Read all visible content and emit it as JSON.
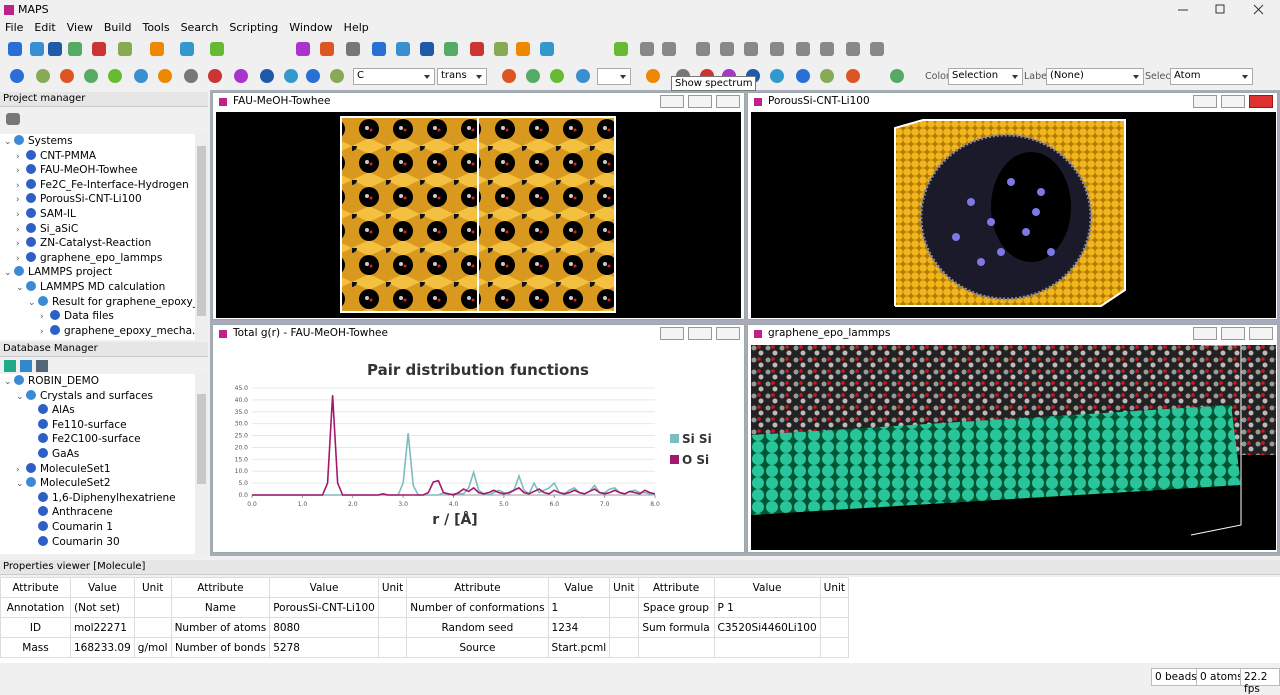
{
  "app_title": "MAPS",
  "menu": [
    "File",
    "Edit",
    "View",
    "Build",
    "Tools",
    "Search",
    "Scripting",
    "Window",
    "Help"
  ],
  "toolbar": {
    "element": "C",
    "bond_mode": "trans",
    "color_label": "Color:",
    "color_value": "Selection",
    "label_label": "Label:",
    "label_value": "(None)",
    "select_label": "Select:",
    "select_value": "Atom",
    "tooltip": "Show spectrum"
  },
  "project_manager": {
    "title": "Project manager",
    "tree": [
      {
        "label": "Systems",
        "expanded": true,
        "children": [
          {
            "label": "CNT-PMMA",
            "expanded": false
          },
          {
            "label": "FAU-MeOH-Towhee",
            "expanded": false
          },
          {
            "label": "Fe2C_Fe-Interface-Hydrogen",
            "expanded": false
          },
          {
            "label": "PorousSi-CNT-Li100",
            "expanded": false
          },
          {
            "label": "SAM-IL",
            "expanded": false
          },
          {
            "label": "Si_aSiC",
            "expanded": false
          },
          {
            "label": "ZN-Catalyst-Reaction",
            "expanded": false
          },
          {
            "label": "graphene_epo_lammps",
            "expanded": false
          }
        ]
      },
      {
        "label": "LAMMPS project",
        "expanded": true,
        "children": [
          {
            "label": "LAMMPS MD calculation",
            "expanded": true,
            "children": [
              {
                "label": "Result for graphene_epoxy_...",
                "expanded": true,
                "children": [
                  {
                    "label": "Data files",
                    "expanded": false
                  },
                  {
                    "label": "graphene_epoxy_mecha...",
                    "expanded": false
                  }
                ]
              }
            ]
          }
        ]
      }
    ]
  },
  "database_manager": {
    "title": "Database Manager",
    "tree": [
      {
        "label": "ROBIN_DEMO",
        "expanded": true,
        "children": [
          {
            "label": "Crystals and surfaces",
            "expanded": true,
            "children": [
              {
                "label": "AlAs"
              },
              {
                "label": "Fe110-surface"
              },
              {
                "label": "Fe2C100-surface"
              },
              {
                "label": "GaAs"
              }
            ]
          },
          {
            "label": "MoleculeSet1",
            "expanded": false
          },
          {
            "label": "MoleculeSet2",
            "expanded": true,
            "children": [
              {
                "label": "1,6-Diphenylhexatriene"
              },
              {
                "label": "Anthracene"
              },
              {
                "label": "Coumarin 1"
              },
              {
                "label": "Coumarin 30"
              }
            ]
          }
        ]
      }
    ]
  },
  "windows": [
    "FAU-MeOH-Towhee",
    "PorousSi-CNT-Li100",
    "Total g(r) - FAU-MeOH-Towhee",
    "graphene_epo_lammps"
  ],
  "chart_data": {
    "type": "line",
    "title": "Pair distribution functions",
    "x_label": "r / [Å]",
    "x": [
      0.0,
      0.1,
      0.2,
      0.3,
      0.4,
      0.5,
      0.6,
      0.7,
      0.8,
      0.9,
      1.0,
      1.1,
      1.2,
      1.3,
      1.4,
      1.5,
      1.6,
      1.7,
      1.8,
      1.9,
      2.0,
      2.1,
      2.2,
      2.3,
      2.4,
      2.5,
      2.6,
      2.7,
      2.8,
      2.9,
      3.0,
      3.1,
      3.2,
      3.3,
      3.4,
      3.5,
      3.6,
      3.7,
      3.8,
      3.9,
      4.0,
      4.1,
      4.2,
      4.3,
      4.4,
      4.5,
      4.6,
      4.7,
      4.8,
      4.9,
      5.0,
      5.1,
      5.2,
      5.3,
      5.4,
      5.5,
      5.6,
      5.7,
      5.8,
      5.9,
      6.0,
      6.1,
      6.2,
      6.3,
      6.4,
      6.5,
      6.6,
      6.7,
      6.8,
      6.9,
      7.0,
      7.1,
      7.2,
      7.3,
      7.4,
      7.5,
      7.6,
      7.7,
      7.8,
      7.9,
      8.0
    ],
    "series": [
      {
        "name": "Si Si",
        "color": "#7dbcc0",
        "values": [
          0,
          0,
          0,
          0,
          0,
          0,
          0,
          0,
          0,
          0,
          0,
          0,
          0,
          0,
          0,
          0,
          0,
          0,
          0,
          0,
          0,
          0,
          0,
          0,
          0,
          0,
          0,
          0,
          0,
          0,
          5,
          26,
          4,
          0,
          0,
          0,
          0,
          0,
          1,
          0,
          0.5,
          0.5,
          0.5,
          3,
          9.5,
          2,
          0.5,
          0,
          1,
          2,
          1,
          0.5,
          2,
          8,
          2,
          0.5,
          5,
          1,
          2,
          3,
          5,
          1,
          0.5,
          2,
          3,
          1,
          0.5,
          1.5,
          4,
          1,
          1,
          2.5,
          3,
          1,
          0.5,
          1.5,
          2,
          1,
          1,
          0.5,
          0
        ]
      },
      {
        "name": "O Si",
        "color": "#a3176c",
        "values": [
          0,
          0,
          0,
          0,
          0,
          0,
          0,
          0,
          0,
          0,
          0,
          0,
          0,
          0,
          0,
          5,
          42,
          5,
          0,
          0,
          0,
          0,
          0,
          0,
          0,
          0,
          0.5,
          0,
          0,
          0,
          0,
          0,
          0,
          0,
          0,
          1,
          5.5,
          6,
          1,
          0.5,
          0,
          1,
          2.5,
          1.5,
          3,
          1,
          0.5,
          1,
          2,
          1,
          0.5,
          1,
          2,
          3,
          1,
          0.5,
          1.5,
          2.5,
          1,
          0.5,
          2,
          1,
          0.5,
          1,
          2,
          1,
          0.5,
          1.5,
          2.5,
          1,
          0.5,
          1,
          2,
          1,
          0.5,
          1.5,
          1,
          0.5,
          2,
          1,
          0.5
        ]
      }
    ],
    "xlim": [
      0,
      8
    ],
    "xticks": [
      {
        "value": 0,
        "label": "0.0"
      },
      {
        "value": 1,
        "label": "1.0"
      },
      {
        "value": 2,
        "label": "2.0"
      },
      {
        "value": 3,
        "label": "3.0"
      },
      {
        "value": 4,
        "label": "4.0"
      },
      {
        "value": 5,
        "label": "5.0"
      },
      {
        "value": 6,
        "label": "6.0"
      },
      {
        "value": 7,
        "label": "7.0"
      },
      {
        "value": 8,
        "label": "8.0"
      }
    ],
    "ylim": [
      0,
      45
    ],
    "yticks": [
      {
        "value": 0,
        "label": "0.0"
      },
      {
        "value": 5,
        "label": "5.0"
      },
      {
        "value": 10,
        "label": "10.0"
      },
      {
        "value": 15,
        "label": "15.0"
      },
      {
        "value": 20,
        "label": "20.0"
      },
      {
        "value": 25,
        "label": "25.0"
      },
      {
        "value": 30,
        "label": "30.0"
      },
      {
        "value": 35,
        "label": "35.0"
      },
      {
        "value": 40,
        "label": "40.0"
      },
      {
        "value": 45,
        "label": "45.0"
      }
    ],
    "grid": true,
    "legend": "right"
  },
  "properties": {
    "title": "Properties viewer [Molecule]",
    "columns": [
      "Attribute",
      "Value",
      "Unit"
    ],
    "groups": [
      {
        "rows": [
          {
            "attribute": "Annotation",
            "value": "(Not set)"
          },
          {
            "attribute": "ID",
            "value": "mol22271"
          },
          {
            "attribute": "Mass",
            "value": "168233.09",
            "unit": "g/mol"
          }
        ]
      },
      {
        "rows": [
          {
            "attribute": "Name",
            "value": "PorousSi-CNT-Li100"
          },
          {
            "attribute": "Number of atoms",
            "value": "8080"
          },
          {
            "attribute": "Number of bonds",
            "value": "5278"
          }
        ]
      },
      {
        "rows": [
          {
            "attribute": "Number of conformations",
            "value": "1"
          },
          {
            "attribute": "Random seed",
            "value": "1234"
          },
          {
            "attribute": "Source",
            "value": "Start.pcml"
          }
        ]
      },
      {
        "rows": [
          {
            "attribute": "Space group",
            "value": "P 1"
          },
          {
            "attribute": "Sum formula",
            "value": "C3520Si4460Li100"
          }
        ]
      }
    ]
  },
  "status": [
    "0 beads",
    "0 atoms",
    "22.2 fps"
  ]
}
